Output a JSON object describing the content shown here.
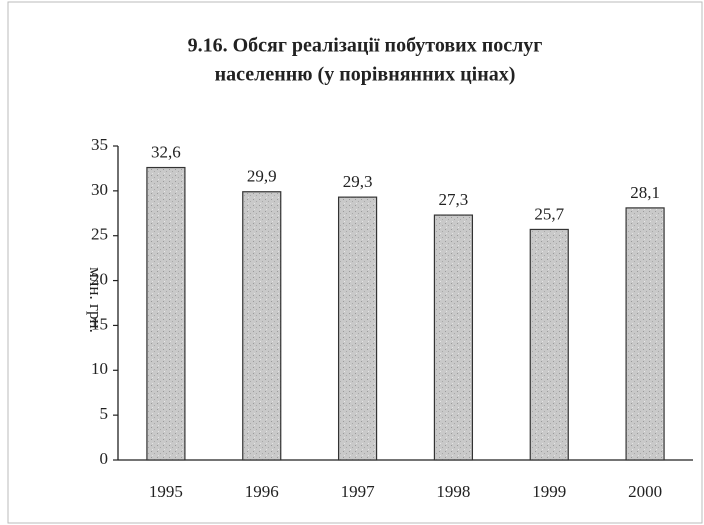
{
  "chart_data": {
    "type": "bar",
    "title": [
      "9.16. Обсяг реалізації побутових послуг",
      "населенню  (у порівнянних цінах)"
    ],
    "y_label": "млн. грн.",
    "categories": [
      "1995",
      "1996",
      "1997",
      "1998",
      "1999",
      "2000"
    ],
    "values": [
      32.6,
      29.9,
      29.3,
      27.3,
      25.7,
      28.1
    ],
    "value_labels": [
      "32,6",
      "29,9",
      "29,3",
      "27,3",
      "25,7",
      "28,1"
    ],
    "color": "#c6c6c6",
    "ylim": [
      0,
      35
    ],
    "yticks": [
      0,
      5,
      10,
      15,
      20,
      25,
      30,
      35
    ],
    "grid": false
  }
}
